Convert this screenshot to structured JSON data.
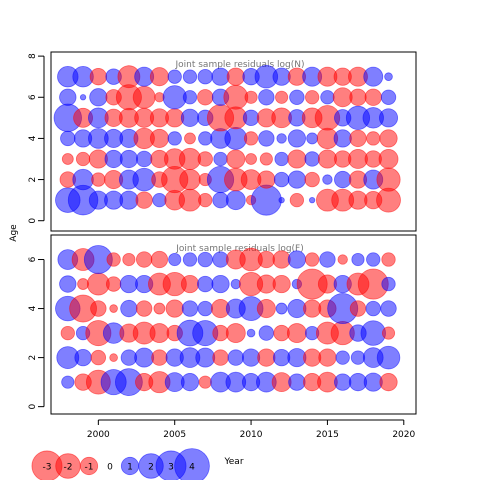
{
  "chart_data": {
    "type": "scatter",
    "subtype": "bubble",
    "xlabel": "Year",
    "ylabel": "Age",
    "x_ticks": [
      "2000",
      "2005",
      "2010",
      "2015",
      "2020"
    ],
    "x_tick_values": [
      2000,
      2005,
      2010,
      2015,
      2020
    ],
    "xlim": [
      1996.9,
      2020.8
    ],
    "colors": {
      "positive": "#0000ff",
      "negative": "#ff0000",
      "frame": "#000000"
    },
    "years": [
      1998,
      1999,
      2000,
      2001,
      2002,
      2003,
      2004,
      2005,
      2006,
      2007,
      2008,
      2009,
      2010,
      2011,
      2012,
      2013,
      2014,
      2015,
      2016,
      2017,
      2018,
      2019
    ],
    "legend": {
      "values": [
        -3,
        -2,
        -1,
        0,
        1,
        2,
        3,
        4
      ],
      "labels": [
        "-3",
        "-2",
        "-1",
        "0",
        "1",
        "2",
        "3",
        "4"
      ]
    },
    "panels": [
      {
        "title": "Joint sample residuals log(N)",
        "y_ticks": [
          "0",
          "2",
          "4",
          "6",
          "8"
        ],
        "y_tick_values": [
          0,
          2,
          4,
          6,
          8
        ],
        "ylim": [
          -0.5,
          8.2
        ],
        "ages": [
          1,
          2,
          3,
          4,
          5,
          6,
          7
        ],
        "residuals": [
          [
            2.0,
            2.9,
            1.1,
            1.1,
            1.1,
            -0.9,
            0.6,
            -1.3,
            -1.6,
            -0.6,
            0.8,
            1.2,
            -0.3,
            3.0,
            0.1,
            -0.6,
            0.1,
            -1.6,
            -1.6,
            -1.1,
            -1.0,
            -1.9
          ],
          [
            -0.8,
            1.4,
            -0.6,
            -1.1,
            1.2,
            1.7,
            -0.8,
            -2.3,
            -1.4,
            -0.5,
            2.3,
            -1.7,
            -1.3,
            -1.0,
            0.7,
            1.0,
            -0.7,
            0.3,
            0.9,
            -1.0,
            1.2,
            -1.8
          ],
          [
            -0.4,
            -0.6,
            -1.1,
            1.0,
            1.0,
            0.8,
            -1.0,
            -1.4,
            -1.5,
            -0.7,
            0.6,
            -1.1,
            -0.4,
            -0.5,
            0.6,
            -1.1,
            0.7,
            -1.1,
            -0.9,
            -1.2,
            -0.9,
            -1.2
          ],
          [
            0.7,
            1.0,
            1.3,
            1.1,
            1.1,
            -1.4,
            -1.1,
            0.6,
            -0.4,
            0.6,
            1.3,
            1.6,
            -0.6,
            0.8,
            0.3,
            1.0,
            0.4,
            -1.4,
            1.0,
            -0.9,
            -0.6,
            -1.0
          ],
          [
            2.5,
            -1.2,
            1.3,
            -1.0,
            -1.2,
            -1.2,
            -1.1,
            -1.1,
            1.0,
            0.8,
            -2.3,
            -1.6,
            0.8,
            -1.1,
            -1.3,
            0.9,
            -1.3,
            -2.0,
            0.9,
            1.8,
            1.4,
            1.1
          ],
          [
            0.9,
            0.1,
            1.0,
            -0.8,
            -2.1,
            -1.6,
            -0.3,
            1.8,
            0.6,
            -0.8,
            0.9,
            -1.9,
            -0.5,
            0.8,
            -0.5,
            0.7,
            -0.6,
            0.6,
            -1.2,
            -0.9,
            -0.9,
            0.7
          ],
          [
            1.4,
            1.4,
            -0.9,
            0.8,
            -1.6,
            1.2,
            -1.1,
            0.6,
            0.6,
            0.7,
            1.0,
            -1.0,
            0.9,
            1.7,
            1.0,
            -1.0,
            1.2,
            -1.2,
            -1.0,
            -1.2,
            1.2,
            0.2
          ]
        ]
      },
      {
        "title": "Joint sample residuals log(F)",
        "y_ticks": [
          "0",
          "2",
          "4",
          "6"
        ],
        "y_tick_values": [
          0,
          2,
          4,
          6
        ],
        "ylim": [
          -0.3,
          7.0
        ],
        "ages": [
          1,
          2,
          3,
          4,
          5,
          6
        ],
        "residuals": [
          [
            0.5,
            -0.9,
            -1.9,
            2.1,
            2.4,
            -1.0,
            -1.5,
            1.2,
            1.0,
            -0.5,
            1.3,
            1.3,
            1.0,
            1.3,
            -1.2,
            0.9,
            -1.0,
            -1.3,
            0.9,
            1.0,
            1.1,
            -1.0
          ],
          [
            1.6,
            0.9,
            -0.7,
            -0.2,
            0.8,
            1.2,
            -0.8,
            1.0,
            1.3,
            1.2,
            -0.8,
            0.8,
            1.0,
            -1.0,
            0.9,
            1.1,
            -1.0,
            -1.0,
            0.6,
            0.6,
            1.3,
            1.7
          ],
          [
            -0.6,
            0.6,
            -2.1,
            1.4,
            -1.1,
            -1.6,
            -1.2,
            -0.8,
            2.2,
            2.1,
            -0.8,
            -1.2,
            0.2,
            0.7,
            -0.8,
            -1.2,
            0.6,
            -1.6,
            -1.8,
            0.9,
            2.0,
            -0.5
          ],
          [
            2.0,
            -2.4,
            -0.8,
            -0.2,
            0.9,
            -0.8,
            -0.4,
            -1.0,
            0.8,
            0.7,
            -1.1,
            1.2,
            1.9,
            -1.1,
            0.4,
            1.1,
            -1.0,
            -1.0,
            3.0,
            -0.8,
            0.7,
            0.8
          ],
          [
            0.9,
            -0.4,
            -1.6,
            -0.7,
            1.0,
            1.0,
            -1.6,
            -1.8,
            -1.0,
            0.8,
            1.0,
            0.3,
            -1.8,
            -1.1,
            -1.0,
            0.3,
            -3.0,
            -1.1,
            1.0,
            -1.6,
            -3.0,
            0.6
          ],
          [
            1.3,
            -1.6,
            2.6,
            -0.6,
            -0.5,
            -0.8,
            -0.9,
            0.5,
            0.6,
            0.7,
            0.8,
            -1.2,
            -1.7,
            -0.9,
            -1.0,
            1.0,
            -0.6,
            0.8,
            -0.3,
            0.5,
            0.6,
            -0.6
          ]
        ]
      }
    ]
  }
}
